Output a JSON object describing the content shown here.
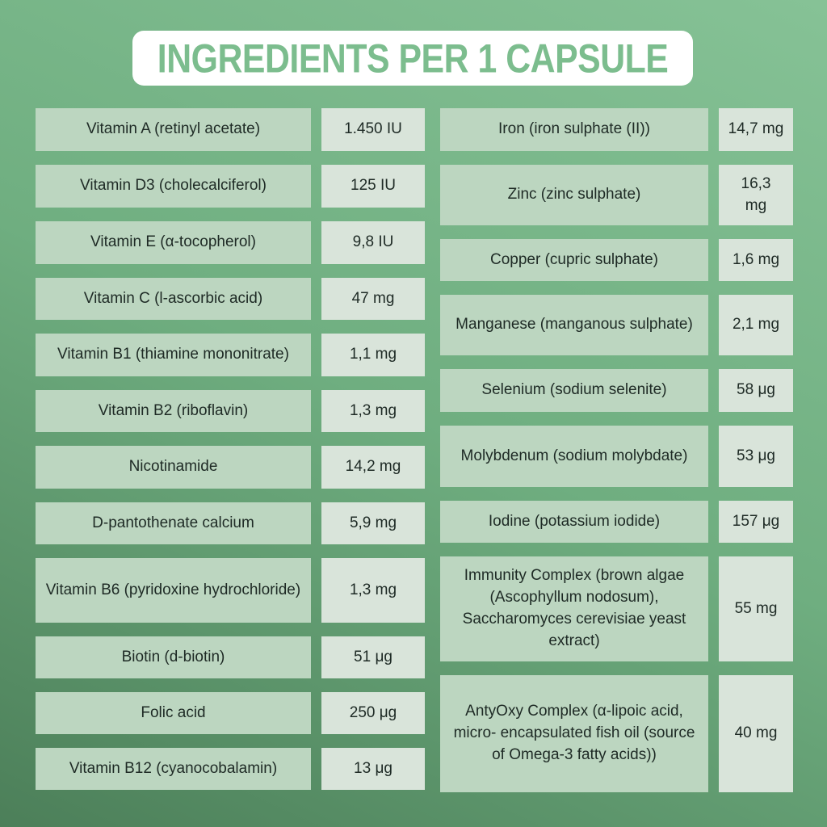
{
  "title": "INGREDIENTS PER 1 CAPSULE",
  "table": {
    "left_rows": [
      {
        "name": "Vitamin A (retinyl acetate)",
        "value": "1.450 IU"
      },
      {
        "name": "Vitamin D3 (cholecalciferol)",
        "value": "125 IU"
      },
      {
        "name": "Vitamin E (α-tocopherol)",
        "value": "9,8 IU"
      },
      {
        "name": "Vitamin C (l-ascorbic acid)",
        "value": "47 mg"
      },
      {
        "name": "Vitamin B1 (thiamine mononitrate)",
        "value": "1,1 mg"
      },
      {
        "name": "Vitamin B2 (riboflavin)",
        "value": "1,3 mg"
      },
      {
        "name": "Nicotinamide",
        "value": "14,2 mg"
      },
      {
        "name": "D-pantothenate calcium",
        "value": "5,9 mg"
      },
      {
        "name": "Vitamin B6 (pyridoxine hydrochloride)",
        "value": "1,3 mg"
      },
      {
        "name": "Biotin (d-biotin)",
        "value": "51 μg"
      },
      {
        "name": "Folic acid",
        "value": "250 μg"
      },
      {
        "name": "Vitamin B12 (cyanocobalamin)",
        "value": "13 μg"
      }
    ],
    "right_rows": [
      {
        "name": "Iron (iron sulphate (II))",
        "value": "14,7 mg"
      },
      {
        "name": "Zinc (zinc sulphate)",
        "value": "16,3\nmg"
      },
      {
        "name": "Copper (cupric sulphate)",
        "value": "1,6 mg"
      },
      {
        "name": "Manganese (manganous sulphate)",
        "value": "2,1 mg"
      },
      {
        "name": "Selenium (sodium selenite)",
        "value": "58 μg"
      },
      {
        "name": "Molybdenum (sodium molybdate)",
        "value": "53 μg"
      },
      {
        "name": "Iodine (potassium iodide)",
        "value": "157 μg"
      },
      {
        "name": "Immunity Complex (brown algae (Ascophyllum nodosum), Saccharomyces cerevisiae yeast extract)",
        "value": "55 mg"
      },
      {
        "name": "AntyOxy Complex (α-lipoic acid, micro- encapsulated fish oil (source of Omega-3 fatty acids))",
        "value": "40 mg"
      }
    ]
  },
  "colors": {
    "title_text": "#7cbd8e",
    "title_bg": "#ffffff",
    "name_cell_bg": "#bcd6c0",
    "value_cell_bg": "#d9e4da",
    "cell_text": "#1e2a25",
    "bg_gradient_top": "#86c296",
    "bg_gradient_bottom": "#4c7f59"
  }
}
